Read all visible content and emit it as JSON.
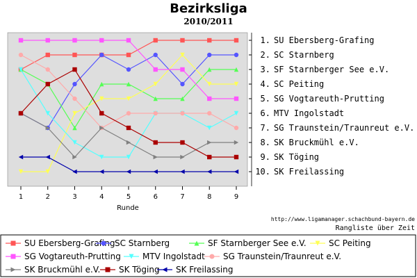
{
  "chart_data": {
    "type": "line",
    "title": "Bezirksliga",
    "subtitle": "2010/2011",
    "xlabel": "Runde",
    "x": [
      1,
      2,
      3,
      4,
      5,
      6,
      7,
      8,
      9
    ],
    "ylim": [
      1,
      10
    ],
    "y_inverted": true,
    "grid": false,
    "background": "#dedede",
    "rank_labels": [
      "1. SU Ebersberg-Grafing",
      "2. SC Starnberg",
      "3. SF Starnberger See e.V.",
      "4. SC Peiting",
      "5. SG Vogtareuth-Prutting",
      "6. MTV Ingolstadt",
      "7. SG Traunstein/Traunreut e.V.",
      "8. SK Bruckmühl e.V.",
      "9. SK Töging",
      "10. SK Freilassing"
    ],
    "source": "http://www.ligamanager.schachbund-bayern.de",
    "footer": "Rangliste über Zeit",
    "legend_position": "bottom",
    "series": [
      {
        "name": "SU Ebersberg-Grafing",
        "color": "#ff5555",
        "marker": "square",
        "values": [
          3,
          2,
          2,
          2,
          2,
          1,
          1,
          1,
          1
        ]
      },
      {
        "name": "SC Starnberg",
        "color": "#5555ff",
        "marker": "circle",
        "values": [
          6,
          7,
          4,
          2,
          3,
          2,
          4,
          2,
          2
        ]
      },
      {
        "name": "SF Starnberger See e.V.",
        "color": "#55ff55",
        "marker": "triangle-up",
        "values": [
          3,
          4,
          7,
          4,
          4,
          5,
          5,
          3,
          3
        ]
      },
      {
        "name": "SC Peiting",
        "color": "#ffff55",
        "marker": "triangle-down",
        "values": [
          10,
          10,
          6,
          5,
          5,
          4,
          2,
          4,
          4
        ]
      },
      {
        "name": "SG Vogtareuth-Prutting",
        "color": "#ff55ff",
        "marker": "square",
        "values": [
          1,
          1,
          1,
          1,
          1,
          3,
          3,
          5,
          5
        ]
      },
      {
        "name": "MTV Ingolstadt",
        "color": "#55ffff",
        "marker": "triangle-down",
        "values": [
          3,
          6,
          8,
          9,
          9,
          6,
          6,
          7,
          6
        ]
      },
      {
        "name": "SG Traunstein/Traunreut e.V.",
        "color": "#ffaaaa",
        "marker": "circle",
        "values": [
          2,
          3,
          5,
          7,
          6,
          6,
          6,
          6,
          7
        ]
      },
      {
        "name": "SK Bruckmühl e.V.",
        "color": "#808080",
        "marker": "triangle-right",
        "values": [
          6,
          7,
          9,
          7,
          8,
          9,
          9,
          8,
          8
        ]
      },
      {
        "name": "SK Töging",
        "color": "#aa0000",
        "marker": "square",
        "values": [
          6,
          4,
          3,
          6,
          7,
          8,
          8,
          9,
          9
        ]
      },
      {
        "name": "SK Freilassing",
        "color": "#0000aa",
        "marker": "triangle-left",
        "values": [
          9,
          9,
          10,
          10,
          10,
          10,
          10,
          10,
          10
        ]
      }
    ]
  }
}
